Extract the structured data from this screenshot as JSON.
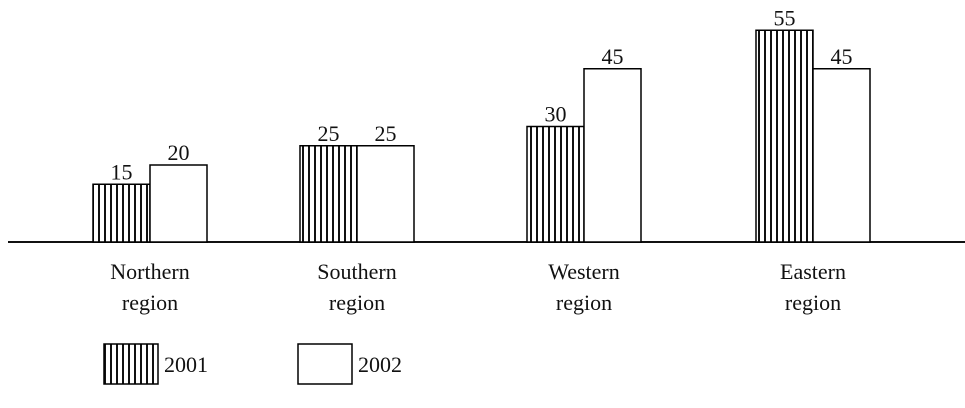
{
  "chart_data": {
    "type": "bar",
    "categories": [
      "Northern region",
      "Southern region",
      "Western region",
      "Eastern region"
    ],
    "series": [
      {
        "name": "2001",
        "color": "#000000",
        "pattern": "vertical-stripes",
        "values": [
          15,
          25,
          30,
          55
        ]
      },
      {
        "name": "2002",
        "color": "#000000",
        "pattern": "none",
        "values": [
          20,
          25,
          45,
          45
        ]
      }
    ],
    "value_labels_shown": true
  }
}
